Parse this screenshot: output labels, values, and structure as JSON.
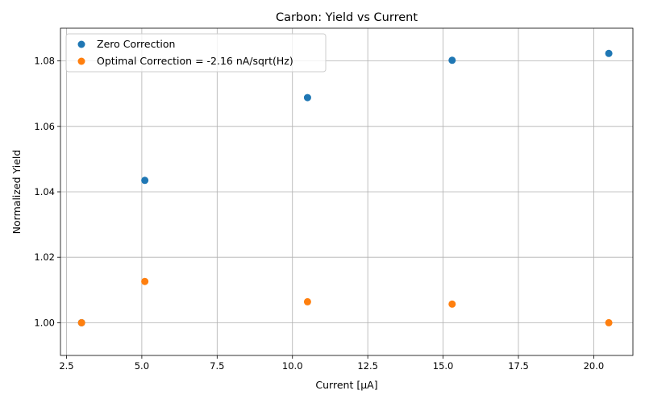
{
  "chart_data": {
    "type": "scatter",
    "title": "Carbon: Yield vs Current",
    "xlabel": "Current [μA]",
    "ylabel": "Normalized Yield",
    "xlim": [
      2.3,
      21.3
    ],
    "ylim": [
      0.99,
      1.09
    ],
    "xticks": [
      2.5,
      5.0,
      7.5,
      10.0,
      12.5,
      15.0,
      17.5,
      20.0
    ],
    "xtick_labels": [
      "2.5",
      "5.0",
      "7.5",
      "10.0",
      "12.5",
      "15.0",
      "17.5",
      "20.0"
    ],
    "yticks": [
      1.0,
      1.02,
      1.04,
      1.06,
      1.08
    ],
    "ytick_labels": [
      "1.00",
      "1.02",
      "1.04",
      "1.06",
      "1.08"
    ],
    "grid": true,
    "legend_position": "top-left",
    "series": [
      {
        "name": "Zero Correction",
        "color": "#1f77b4",
        "x": [
          3.0,
          5.1,
          10.5,
          15.3,
          20.5
        ],
        "y": [
          1.0,
          1.0435,
          1.0688,
          1.0802,
          1.0823
        ]
      },
      {
        "name": "Optimal Correction = -2.16 nA/sqrt(Hz)",
        "color": "#ff7f0e",
        "x": [
          3.0,
          5.1,
          10.5,
          15.3,
          20.5
        ],
        "y": [
          1.0,
          1.0126,
          1.0064,
          1.0057,
          1.0
        ]
      }
    ]
  }
}
